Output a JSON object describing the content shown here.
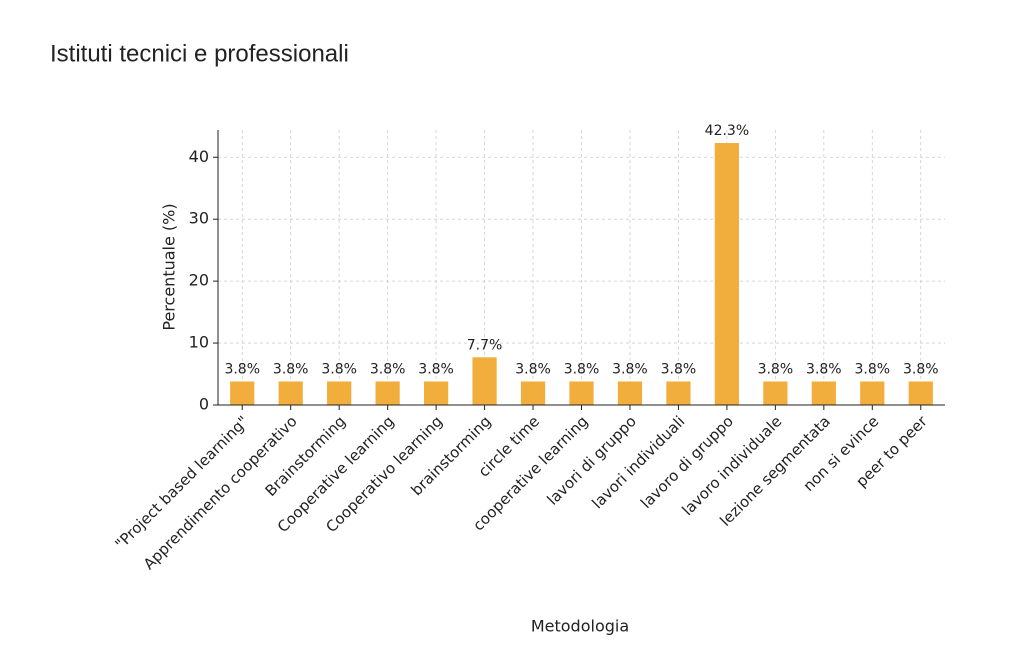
{
  "chart_data": {
    "type": "bar",
    "title": "Istituti tecnici e professionali",
    "x_label": "Metodologia",
    "y_label": "Percentuale (%)",
    "categories": [
      "\"Project based learning\"",
      "Apprendimento cooperativo",
      "Brainstorming",
      "Cooperative learning",
      "Cooperativo learning",
      "brainstorming",
      "circle time",
      "cooperative learning",
      "lavori di gruppo",
      "lavori individuali",
      "lavoro di gruppo",
      "lavoro individuale",
      "lezione segmentata",
      "non si evince",
      "peer to peer"
    ],
    "values": [
      3.8,
      3.8,
      3.8,
      3.8,
      3.8,
      7.7,
      3.8,
      3.8,
      3.8,
      3.8,
      42.3,
      3.8,
      3.8,
      3.8,
      3.8
    ],
    "value_labels": [
      "3.8%",
      "3.8%",
      "3.8%",
      "3.8%",
      "3.8%",
      "7.7%",
      "3.8%",
      "3.8%",
      "3.8%",
      "3.8%",
      "42.3%",
      "3.8%",
      "3.8%",
      "3.8%",
      "3.8%"
    ],
    "color": "#f2ae3d",
    "ylim": [
      0,
      44.4
    ],
    "yticks": [
      0,
      10,
      20,
      30,
      40
    ],
    "grid": true
  }
}
